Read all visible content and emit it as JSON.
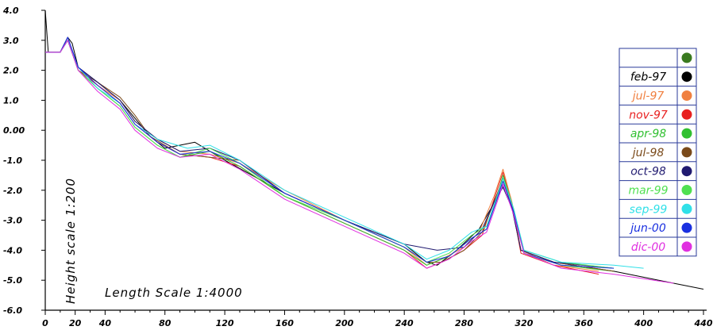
{
  "chart_data": {
    "type": "line",
    "title": "",
    "xlabel": "Length Scale 1:4000",
    "ylabel": "Height scale 1:200",
    "xlim": [
      0,
      440
    ],
    "ylim": [
      -6.0,
      4.0
    ],
    "x_ticks": [
      "0",
      "20",
      "40",
      "80",
      "120",
      "160",
      "200",
      "240",
      "280",
      "320",
      "360",
      "400",
      "440"
    ],
    "y_ticks": [
      "4.0",
      "3.0",
      "2.0",
      "1.0",
      "0.00",
      "-1.0",
      "-2.0",
      "-3.0",
      "-4.0",
      "-5.0",
      "-6.0"
    ],
    "legend_position": "right",
    "legend_header_color": "#3a7a1f",
    "series": [
      {
        "name": "feb-97",
        "color": "#000000",
        "points": [
          [
            0,
            4.0
          ],
          [
            2,
            2.6
          ],
          [
            10,
            2.6
          ],
          [
            15,
            3.1
          ],
          [
            18,
            2.9
          ],
          [
            22,
            2.1
          ],
          [
            35,
            1.6
          ],
          [
            50,
            1.0
          ],
          [
            60,
            0.4
          ],
          [
            70,
            -0.2
          ],
          [
            80,
            -0.6
          ],
          [
            100,
            -0.4
          ],
          [
            120,
            -1.0
          ],
          [
            160,
            -2.1
          ],
          [
            200,
            -3.0
          ],
          [
            240,
            -3.8
          ],
          [
            255,
            -4.4
          ],
          [
            262,
            -4.5
          ],
          [
            275,
            -4.0
          ],
          [
            290,
            -3.3
          ],
          [
            298,
            -2.6
          ],
          [
            305,
            -1.8
          ],
          [
            312,
            -2.5
          ],
          [
            318,
            -4.0
          ],
          [
            340,
            -4.4
          ],
          [
            380,
            -4.7
          ],
          [
            420,
            -5.1
          ],
          [
            440,
            -5.3
          ]
        ]
      },
      {
        "name": "jul-97",
        "color": "#f08040",
        "points": [
          [
            0,
            2.6
          ],
          [
            10,
            2.6
          ],
          [
            15,
            3.0
          ],
          [
            22,
            2.1
          ],
          [
            35,
            1.5
          ],
          [
            50,
            1.0
          ],
          [
            60,
            0.3
          ],
          [
            75,
            -0.3
          ],
          [
            90,
            -0.7
          ],
          [
            110,
            -0.8
          ],
          [
            130,
            -1.1
          ],
          [
            160,
            -2.0
          ],
          [
            200,
            -3.0
          ],
          [
            240,
            -3.9
          ],
          [
            255,
            -4.5
          ],
          [
            265,
            -4.3
          ],
          [
            280,
            -3.9
          ],
          [
            290,
            -3.4
          ],
          [
            300,
            -2.2
          ],
          [
            306,
            -1.3
          ],
          [
            312,
            -2.4
          ],
          [
            318,
            -4.0
          ],
          [
            340,
            -4.5
          ],
          [
            370,
            -4.7
          ]
        ]
      },
      {
        "name": "nov-97",
        "color": "#e82020",
        "points": [
          [
            0,
            2.6
          ],
          [
            10,
            2.6
          ],
          [
            15,
            3.0
          ],
          [
            22,
            2.0
          ],
          [
            35,
            1.5
          ],
          [
            50,
            0.9
          ],
          [
            60,
            0.2
          ],
          [
            75,
            -0.4
          ],
          [
            90,
            -0.8
          ],
          [
            110,
            -0.9
          ],
          [
            130,
            -1.2
          ],
          [
            160,
            -2.2
          ],
          [
            200,
            -3.1
          ],
          [
            240,
            -4.0
          ],
          [
            255,
            -4.6
          ],
          [
            265,
            -4.4
          ],
          [
            280,
            -4.0
          ],
          [
            292,
            -3.5
          ],
          [
            300,
            -2.3
          ],
          [
            306,
            -1.4
          ],
          [
            312,
            -2.5
          ],
          [
            318,
            -4.1
          ],
          [
            340,
            -4.5
          ],
          [
            370,
            -4.8
          ]
        ]
      },
      {
        "name": "apr-98",
        "color": "#30c030",
        "points": [
          [
            0,
            2.6
          ],
          [
            10,
            2.6
          ],
          [
            15,
            3.0
          ],
          [
            22,
            2.0
          ],
          [
            35,
            1.4
          ],
          [
            50,
            0.8
          ],
          [
            60,
            0.1
          ],
          [
            75,
            -0.5
          ],
          [
            90,
            -0.9
          ],
          [
            110,
            -0.7
          ],
          [
            130,
            -1.2
          ],
          [
            160,
            -2.2
          ],
          [
            200,
            -3.1
          ],
          [
            240,
            -4.0
          ],
          [
            255,
            -4.5
          ],
          [
            270,
            -4.2
          ],
          [
            285,
            -3.6
          ],
          [
            295,
            -3.3
          ],
          [
            302,
            -2.2
          ],
          [
            306,
            -1.5
          ],
          [
            313,
            -2.6
          ],
          [
            320,
            -4.1
          ],
          [
            345,
            -4.5
          ],
          [
            380,
            -4.7
          ]
        ]
      },
      {
        "name": "jul-98",
        "color": "#7a4a1a",
        "points": [
          [
            0,
            2.6
          ],
          [
            10,
            2.6
          ],
          [
            15,
            3.0
          ],
          [
            22,
            2.0
          ],
          [
            35,
            1.6
          ],
          [
            50,
            1.1
          ],
          [
            60,
            0.5
          ],
          [
            70,
            -0.2
          ],
          [
            90,
            -0.8
          ],
          [
            110,
            -0.9
          ],
          [
            130,
            -1.0
          ],
          [
            160,
            -2.1
          ],
          [
            200,
            -3.0
          ],
          [
            240,
            -3.9
          ],
          [
            255,
            -4.4
          ],
          [
            265,
            -4.4
          ],
          [
            280,
            -4.0
          ],
          [
            292,
            -3.4
          ],
          [
            300,
            -2.4
          ],
          [
            306,
            -1.6
          ],
          [
            312,
            -2.6
          ],
          [
            318,
            -4.0
          ],
          [
            340,
            -4.4
          ],
          [
            380,
            -4.7
          ]
        ]
      },
      {
        "name": "oct-98",
        "color": "#201a70",
        "points": [
          [
            0,
            2.6
          ],
          [
            10,
            2.6
          ],
          [
            15,
            3.1
          ],
          [
            22,
            2.1
          ],
          [
            35,
            1.6
          ],
          [
            50,
            1.0
          ],
          [
            60,
            0.3
          ],
          [
            75,
            -0.3
          ],
          [
            90,
            -0.7
          ],
          [
            110,
            -0.6
          ],
          [
            130,
            -1.0
          ],
          [
            160,
            -2.1
          ],
          [
            200,
            -3.0
          ],
          [
            240,
            -3.8
          ],
          [
            262,
            -4.0
          ],
          [
            280,
            -3.9
          ],
          [
            292,
            -3.3
          ],
          [
            300,
            -2.4
          ],
          [
            306,
            -1.9
          ],
          [
            312,
            -2.6
          ],
          [
            318,
            -4.0
          ],
          [
            340,
            -4.4
          ],
          [
            380,
            -4.6
          ]
        ]
      },
      {
        "name": "mar-99",
        "color": "#50e050",
        "points": [
          [
            0,
            2.6
          ],
          [
            10,
            2.6
          ],
          [
            15,
            3.0
          ],
          [
            22,
            2.0
          ],
          [
            35,
            1.4
          ],
          [
            50,
            0.8
          ],
          [
            60,
            0.1
          ],
          [
            75,
            -0.5
          ],
          [
            90,
            -0.9
          ],
          [
            110,
            -0.6
          ],
          [
            130,
            -1.1
          ],
          [
            160,
            -2.2
          ],
          [
            200,
            -3.0
          ],
          [
            240,
            -3.9
          ],
          [
            255,
            -4.4
          ],
          [
            270,
            -4.1
          ],
          [
            285,
            -3.5
          ],
          [
            295,
            -3.2
          ],
          [
            302,
            -2.3
          ],
          [
            306,
            -1.6
          ],
          [
            313,
            -2.6
          ],
          [
            320,
            -4.0
          ],
          [
            345,
            -4.4
          ],
          [
            380,
            -4.6
          ]
        ]
      },
      {
        "name": "sep-99",
        "color": "#30e0e8",
        "points": [
          [
            0,
            2.6
          ],
          [
            10,
            2.6
          ],
          [
            15,
            3.0
          ],
          [
            22,
            2.1
          ],
          [
            35,
            1.4
          ],
          [
            50,
            0.9
          ],
          [
            60,
            0.2
          ],
          [
            75,
            -0.3
          ],
          [
            95,
            -0.6
          ],
          [
            110,
            -0.5
          ],
          [
            130,
            -1.0
          ],
          [
            160,
            -2.0
          ],
          [
            200,
            -2.9
          ],
          [
            240,
            -3.8
          ],
          [
            255,
            -4.3
          ],
          [
            270,
            -4.0
          ],
          [
            285,
            -3.4
          ],
          [
            295,
            -3.2
          ],
          [
            302,
            -2.2
          ],
          [
            306,
            -1.6
          ],
          [
            313,
            -2.6
          ],
          [
            320,
            -4.0
          ],
          [
            345,
            -4.4
          ],
          [
            380,
            -4.5
          ],
          [
            400,
            -4.6
          ]
        ]
      },
      {
        "name": "jun-00",
        "color": "#1a30e0",
        "points": [
          [
            0,
            2.6
          ],
          [
            10,
            2.6
          ],
          [
            15,
            3.1
          ],
          [
            22,
            2.1
          ],
          [
            35,
            1.5
          ],
          [
            50,
            0.9
          ],
          [
            60,
            0.2
          ],
          [
            75,
            -0.4
          ],
          [
            90,
            -0.8
          ],
          [
            110,
            -0.7
          ],
          [
            130,
            -1.1
          ],
          [
            160,
            -2.1
          ],
          [
            200,
            -3.0
          ],
          [
            240,
            -3.9
          ],
          [
            255,
            -4.4
          ],
          [
            270,
            -4.2
          ],
          [
            285,
            -3.6
          ],
          [
            295,
            -3.3
          ],
          [
            302,
            -2.3
          ],
          [
            306,
            -1.7
          ],
          [
            313,
            -2.7
          ],
          [
            320,
            -4.1
          ],
          [
            345,
            -4.5
          ],
          [
            380,
            -4.6
          ]
        ]
      },
      {
        "name": "dic-00",
        "color": "#e030e0",
        "points": [
          [
            0,
            2.6
          ],
          [
            10,
            2.6
          ],
          [
            15,
            3.0
          ],
          [
            22,
            2.0
          ],
          [
            35,
            1.3
          ],
          [
            50,
            0.7
          ],
          [
            60,
            0.0
          ],
          [
            75,
            -0.6
          ],
          [
            90,
            -0.9
          ],
          [
            110,
            -0.8
          ],
          [
            130,
            -1.3
          ],
          [
            160,
            -2.3
          ],
          [
            200,
            -3.2
          ],
          [
            240,
            -4.1
          ],
          [
            255,
            -4.6
          ],
          [
            270,
            -4.3
          ],
          [
            285,
            -3.7
          ],
          [
            295,
            -3.4
          ],
          [
            302,
            -2.4
          ],
          [
            306,
            -1.8
          ],
          [
            313,
            -2.8
          ],
          [
            320,
            -4.1
          ],
          [
            345,
            -4.6
          ],
          [
            380,
            -4.8
          ],
          [
            420,
            -5.1
          ]
        ]
      }
    ]
  }
}
